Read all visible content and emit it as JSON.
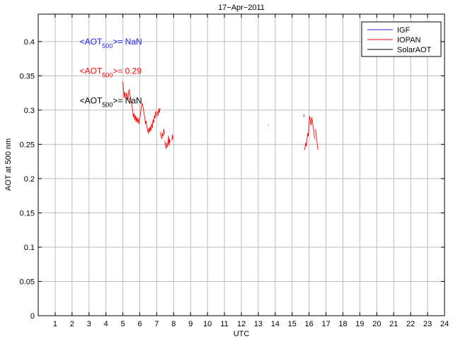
{
  "chart_data": {
    "type": "line",
    "title": "17−Apr−2011",
    "xlabel": "UTC",
    "ylabel": "AOT at 500 nm",
    "xlim": [
      0,
      24
    ],
    "ylim": [
      0,
      0.44
    ],
    "xticks": [
      1,
      2,
      3,
      4,
      5,
      6,
      7,
      8,
      9,
      10,
      11,
      12,
      13,
      14,
      15,
      16,
      17,
      18,
      19,
      20,
      21,
      22,
      23,
      24
    ],
    "yticks": [
      0,
      0.05,
      0.1,
      0.15,
      0.2,
      0.25,
      0.3,
      0.35,
      0.4
    ],
    "ytick_labels": [
      "0",
      "0.05",
      "0.1",
      "0.15",
      "0.2",
      "0.25",
      "0.3",
      "0.35",
      "0.4"
    ],
    "grid": true,
    "legend_position": "top-right",
    "series": [
      {
        "name": "IGF",
        "color": "#1f1fff",
        "segments": []
      },
      {
        "name": "IOPAN",
        "color": "#ff0000",
        "segments": [
          [
            [
              5.0,
              0.342
            ],
            [
              5.04,
              0.33
            ],
            [
              5.08,
              0.318
            ],
            [
              5.1,
              0.326
            ],
            [
              5.14,
              0.322
            ],
            [
              5.18,
              0.318
            ],
            [
              5.22,
              0.325
            ],
            [
              5.26,
              0.32
            ],
            [
              5.3,
              0.314
            ],
            [
              5.34,
              0.326
            ],
            [
              5.38,
              0.33
            ],
            [
              5.42,
              0.322
            ],
            [
              5.46,
              0.318
            ],
            [
              5.5,
              0.312
            ],
            [
              5.54,
              0.305
            ],
            [
              5.58,
              0.3
            ],
            [
              5.62,
              0.29
            ],
            [
              5.66,
              0.295
            ],
            [
              5.7,
              0.286
            ],
            [
              5.74,
              0.292
            ],
            [
              5.78,
              0.283
            ],
            [
              5.82,
              0.29
            ],
            [
              5.86,
              0.282
            ],
            [
              5.9,
              0.288
            ],
            [
              5.94,
              0.28
            ],
            [
              5.98,
              0.286
            ],
            [
              6.02,
              0.29
            ],
            [
              6.06,
              0.298
            ],
            [
              6.1,
              0.305
            ],
            [
              6.14,
              0.31
            ],
            [
              6.18,
              0.306
            ],
            [
              6.22,
              0.3
            ],
            [
              6.26,
              0.294
            ],
            [
              6.3,
              0.288
            ],
            [
              6.34,
              0.28
            ],
            [
              6.38,
              0.284
            ],
            [
              6.42,
              0.276
            ],
            [
              6.46,
              0.271
            ],
            [
              6.5,
              0.266
            ],
            [
              6.54,
              0.274
            ],
            [
              6.58,
              0.268
            ],
            [
              6.62,
              0.276
            ],
            [
              6.66,
              0.27
            ],
            [
              6.7,
              0.28
            ],
            [
              6.74,
              0.274
            ],
            [
              6.78,
              0.286
            ],
            [
              6.82,
              0.281
            ],
            [
              6.86,
              0.292
            ],
            [
              6.9,
              0.288
            ],
            [
              6.94,
              0.298
            ],
            [
              6.98,
              0.294
            ],
            [
              7.02,
              0.29
            ]
          ],
          [
            [
              7.05,
              0.298
            ],
            [
              7.08,
              0.292
            ],
            [
              7.12,
              0.302
            ],
            [
              7.16,
              0.296
            ],
            [
              7.2,
              0.303
            ]
          ],
          [
            [
              7.22,
              0.268
            ],
            [
              7.26,
              0.262
            ],
            [
              7.3,
              0.258
            ],
            [
              7.34,
              0.266
            ],
            [
              7.38,
              0.262
            ],
            [
              7.42,
              0.272
            ],
            [
              7.46,
              0.265
            ]
          ],
          [
            [
              7.48,
              0.255
            ],
            [
              7.52,
              0.248
            ],
            [
              7.56,
              0.244
            ],
            [
              7.6,
              0.252
            ],
            [
              7.64,
              0.246
            ]
          ],
          [
            [
              7.66,
              0.25
            ],
            [
              7.7,
              0.262
            ],
            [
              7.73,
              0.248
            ],
            [
              7.76,
              0.258
            ],
            [
              7.79,
              0.252
            ]
          ],
          [
            [
              7.9,
              0.255
            ],
            [
              7.93,
              0.264
            ],
            [
              7.96,
              0.258
            ]
          ],
          [
            [
              15.68,
              0.294
            ],
            [
              15.71,
              0.29
            ]
          ],
          [
            [
              15.72,
              0.242
            ],
            [
              15.76,
              0.245
            ],
            [
              15.8,
              0.252
            ],
            [
              15.84,
              0.247
            ],
            [
              15.88,
              0.258
            ],
            [
              15.92,
              0.266
            ],
            [
              15.96,
              0.262
            ],
            [
              16.0,
              0.282
            ],
            [
              16.04,
              0.291
            ],
            [
              16.08,
              0.284
            ],
            [
              16.12,
              0.278
            ],
            [
              16.16,
              0.289
            ],
            [
              16.2,
              0.283
            ],
            [
              16.24,
              0.275
            ],
            [
              16.28,
              0.27
            ],
            [
              16.32,
              0.258
            ]
          ],
          [
            [
              16.38,
              0.272
            ],
            [
              16.42,
              0.264
            ],
            [
              16.46,
              0.255
            ],
            [
              16.5,
              0.247
            ],
            [
              16.52,
              0.242
            ]
          ]
        ]
      },
      {
        "name": "SolarAOT",
        "color": "#000000",
        "segments": [
          [
            [
              13.58,
              0.278
            ],
            [
              13.62,
              0.278
            ]
          ]
        ]
      }
    ],
    "annotations": [
      {
        "prefix": "<AOT",
        "sub": "500",
        "suffix": ">=  NaN",
        "color": "#1f1fff",
        "x": 2.45,
        "y": 0.4
      },
      {
        "prefix": "<AOT",
        "sub": "500",
        "suffix": ">= 0.29",
        "color": "#ff0000",
        "x": 2.45,
        "y": 0.357
      },
      {
        "prefix": "<AOT",
        "sub": "500",
        "suffix": ">= NaN",
        "color": "#000000",
        "x": 2.45,
        "y": 0.314
      }
    ]
  }
}
